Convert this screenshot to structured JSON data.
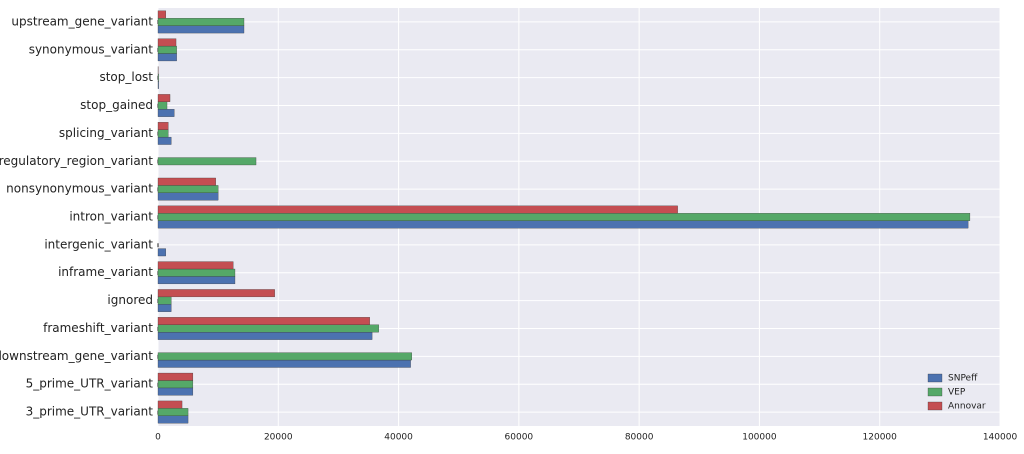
{
  "chart_data": {
    "type": "barh",
    "categories": [
      "3_prime_UTR_variant",
      "5_prime_UTR_variant",
      "downstream_gene_variant",
      "frameshift_variant",
      "ignored",
      "inframe_variant",
      "intergenic_variant",
      "intron_variant",
      "nonsynonymous_variant",
      "regulatory_region_variant",
      "splicing_variant",
      "stop_gained",
      "stop_lost",
      "synonymous_variant",
      "upstream_gene_variant"
    ],
    "series": [
      {
        "name": "SNPeff",
        "color": "#4c72b0",
        "values": [
          5000,
          5800,
          42000,
          35600,
          2200,
          12800,
          1300,
          134700,
          10000,
          0,
          2200,
          2700,
          100,
          3100,
          14300
        ]
      },
      {
        "name": "VEP",
        "color": "#55a868",
        "values": [
          5000,
          5800,
          42200,
          36700,
          2200,
          12800,
          0,
          135000,
          10000,
          16300,
          1700,
          1500,
          100,
          3100,
          14300
        ]
      },
      {
        "name": "Annovar",
        "color": "#c44e52",
        "values": [
          4000,
          5800,
          0,
          35200,
          19400,
          12500,
          0,
          86400,
          9600,
          0,
          1700,
          2000,
          50,
          3000,
          1300
        ]
      }
    ],
    "xlim": [
      0,
      140000
    ],
    "xticks": [
      0,
      20000,
      40000,
      60000,
      80000,
      100000,
      120000,
      140000
    ],
    "grid": true,
    "legend": "lower right"
  }
}
